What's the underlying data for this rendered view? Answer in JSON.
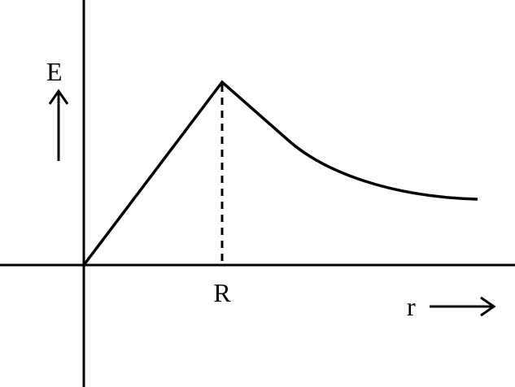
{
  "diagram": {
    "y_axis_label": "E",
    "x_axis_label": "r",
    "x_marker_label": "R",
    "line_color": "#000000",
    "background_color": "#ffffff",
    "description_of_curve": ""
  }
}
